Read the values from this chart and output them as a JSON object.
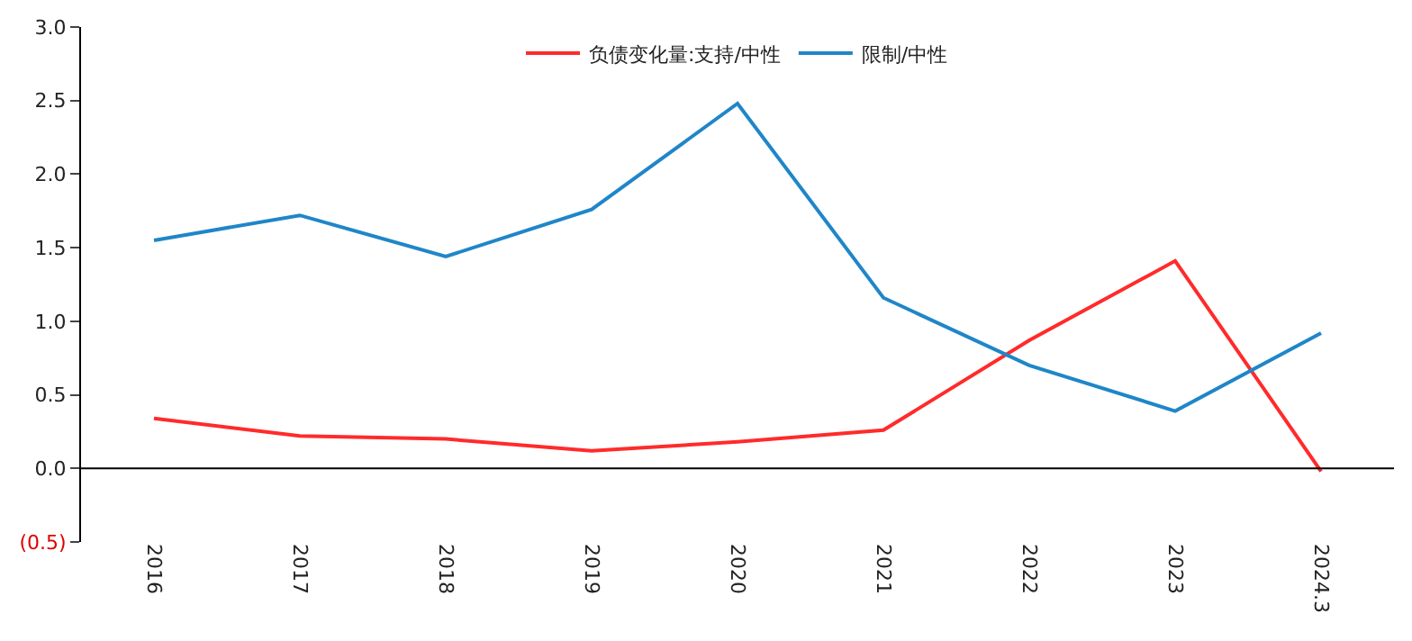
{
  "chart_data": {
    "type": "line",
    "categories": [
      "2016",
      "2017",
      "2018",
      "2019",
      "2020",
      "2021",
      "2022",
      "2023",
      "2024.3"
    ],
    "series": [
      {
        "name": "负债变化量:支持/中性",
        "color": "#ff2b2b",
        "values": [
          0.34,
          0.22,
          0.2,
          0.12,
          0.18,
          0.26,
          0.87,
          1.41,
          -0.02
        ]
      },
      {
        "name": "限制/中性",
        "color": "#1f86c8",
        "values": [
          1.55,
          1.72,
          1.44,
          1.76,
          2.48,
          1.16,
          0.7,
          0.39,
          0.92
        ]
      }
    ],
    "ylim": [
      -0.5,
      3.0
    ],
    "yticks": [
      {
        "value": -0.5,
        "label": "(0.5)"
      },
      {
        "value": 0,
        "label": "0.0"
      },
      {
        "value": 0.5,
        "label": "0.5"
      },
      {
        "value": 1.0,
        "label": "1.0"
      },
      {
        "value": 1.5,
        "label": "1.5"
      },
      {
        "value": 2.0,
        "label": "2.0"
      },
      {
        "value": 2.5,
        "label": "2.5"
      },
      {
        "value": 3.0,
        "label": "3.0"
      }
    ],
    "ref_lines": [
      {
        "axis": "y",
        "value": 0,
        "color": "#000000",
        "line_style": "solid"
      }
    ],
    "legend": "top",
    "marker": "none",
    "line_style": "solid"
  }
}
